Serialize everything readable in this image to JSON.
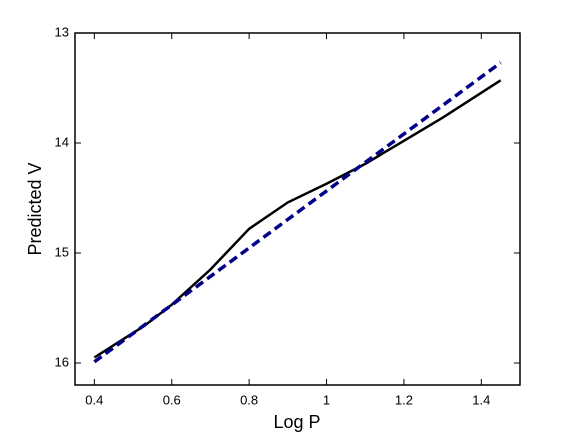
{
  "chart_data": {
    "type": "line",
    "xlabel": "Log P",
    "ylabel": "Predicted V",
    "xlim": [
      0.35,
      1.5
    ],
    "ylim": [
      13,
      16.2
    ],
    "y_reversed": true,
    "xticks": [
      0.4,
      0.6,
      0.8,
      1,
      1.2,
      1.4
    ],
    "yticks": [
      13,
      14,
      15,
      16
    ],
    "grid": false,
    "series": [
      {
        "color": "#000000",
        "style": "solid",
        "x": [
          0.4,
          0.53,
          0.6,
          0.7,
          0.8,
          0.9,
          1.0,
          1.1,
          1.2,
          1.3,
          1.45
        ],
        "values": [
          15.95,
          15.66,
          15.47,
          15.15,
          14.78,
          14.54,
          14.37,
          14.19,
          13.98,
          13.77,
          13.43
        ]
      },
      {
        "color": "#00008b",
        "style": "dashed",
        "x": [
          0.4,
          1.45
        ],
        "values": [
          15.99,
          13.27
        ]
      }
    ]
  }
}
